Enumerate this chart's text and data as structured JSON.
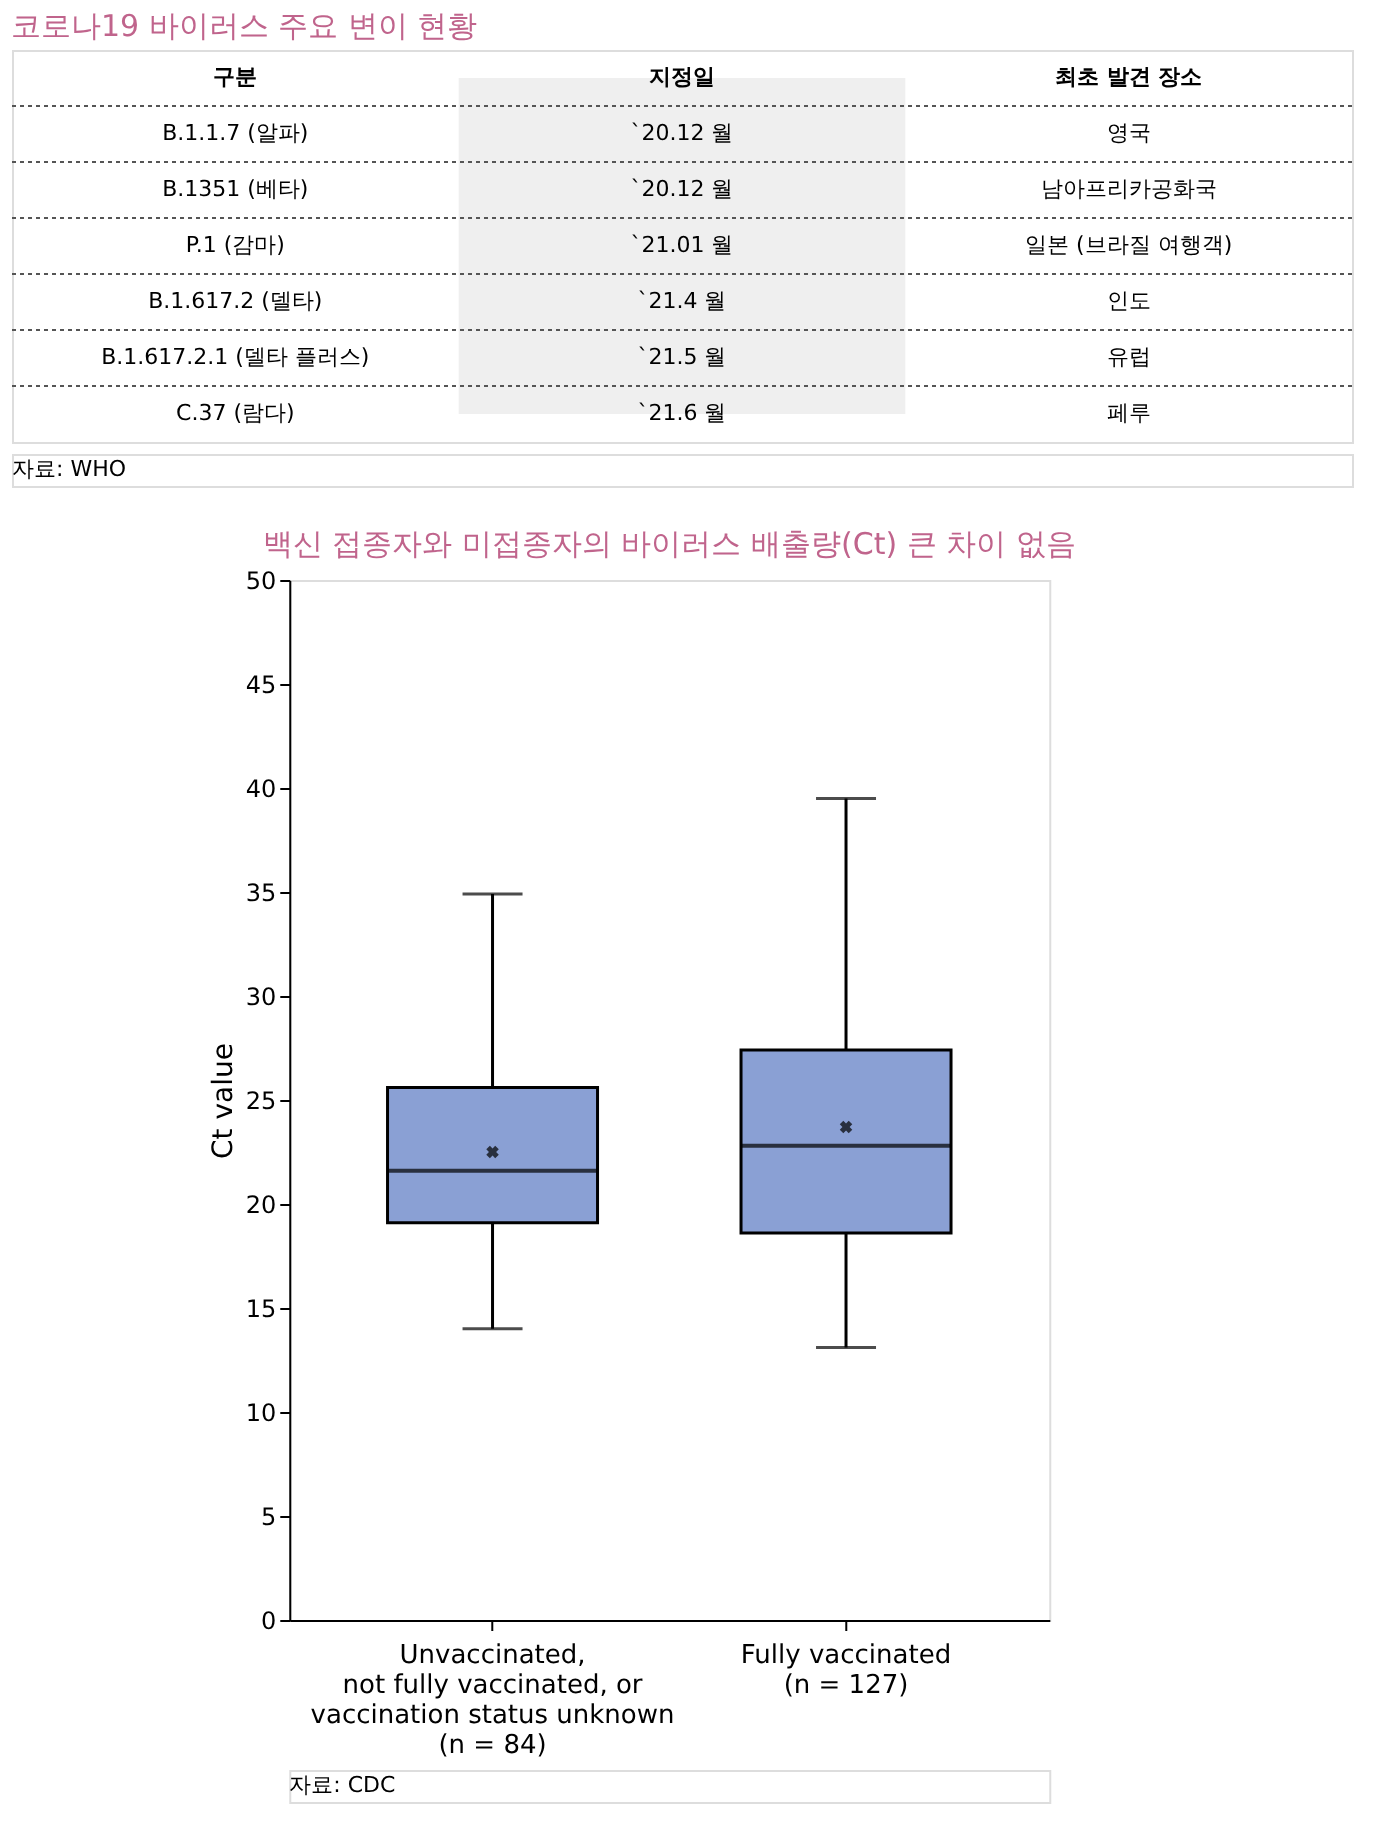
{
  "chart_data": [
    {
      "type": "other",
      "title": "코로나19 바이러스 주요 변이 현황",
      "categories": [
        "구분",
        "지정일",
        "최초 발견 장소"
      ],
      "annotations": [
        "B.1.1.7 (알파)",
        "`20.12 월",
        "영국",
        "B.1351 (베타)",
        "`20.12 월",
        "남아프리카공화국",
        "P.1 (감마)",
        "`21.01 월",
        "일본 (브라질 여행객)",
        "B.1.617.2 (델타)",
        "`21.4 월",
        "인도",
        "B.1.617.2.1 (델타 플러스)",
        "`21.5 월",
        "유럽",
        "C.37 (람다)",
        "`21.6 월",
        "페루",
        "자료: WHO"
      ]
    },
    {
      "type": "box",
      "title": "백신 접종자와 미접종자의 바이러스 배출량(Ct) 큰 차이 없음",
      "ylabel": "Ct value",
      "categories": [
        "Unvaccinated,\nnot fully vaccinated, or\nvaccination status unknown\n(n = 84)",
        "Fully vaccinated\n(n = 127)"
      ],
      "series": [
        {
          "color": "#8aa0d4",
          "boxes": [
            {
              "low": 14.0,
              "q1": 19.1,
              "median": 21.6,
              "q3": 25.6,
              "high": 34.9,
              "mean": 22.5
            },
            {
              "low": 13.1,
              "q1": 18.6,
              "median": 22.8,
              "q3": 27.4,
              "high": 39.5,
              "mean": 23.7
            }
          ]
        }
      ],
      "ylim": [
        0,
        50
      ],
      "yticks": [
        0,
        5,
        10,
        15,
        20,
        25,
        30,
        35,
        40,
        45,
        50
      ],
      "grid": false,
      "annotations": [
        "자료: CDC"
      ]
    }
  ]
}
